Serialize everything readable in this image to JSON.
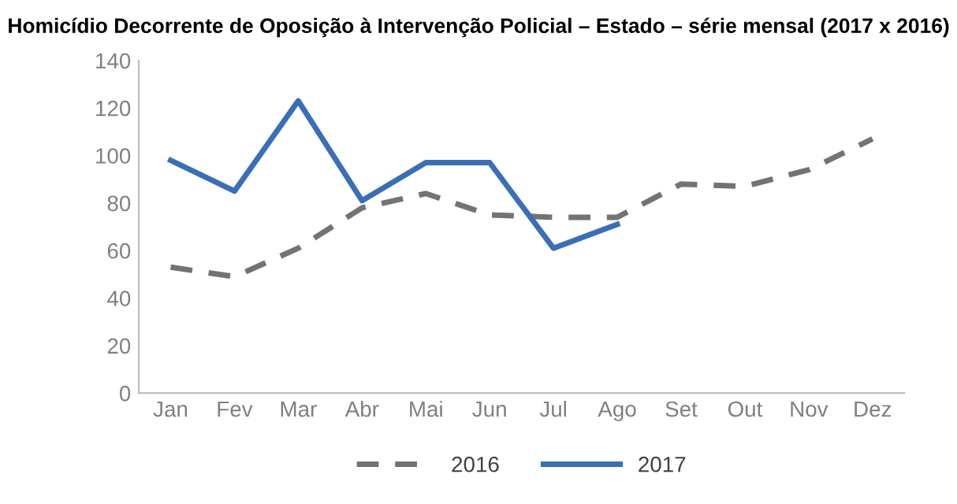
{
  "chart_data": {
    "type": "line",
    "title": "Homicídio Decorrente de Oposição à Intervenção Policial – Estado – série mensal (2017 x 2016)",
    "categories": [
      "Jan",
      "Fev",
      "Mar",
      "Abr",
      "Mai",
      "Jun",
      "Jul",
      "Ago",
      "Set",
      "Out",
      "Nov",
      "Dez"
    ],
    "series": [
      {
        "name": "2016",
        "color": "#737373",
        "line_style": "dashed",
        "values": [
          53,
          49,
          61,
          78,
          84,
          75,
          74,
          74,
          88,
          87,
          94,
          107
        ]
      },
      {
        "name": "2017",
        "color": "#3a6fb5",
        "line_style": "solid",
        "values": [
          98,
          85,
          123,
          81,
          97,
          97,
          61,
          71,
          null,
          null,
          null,
          null
        ]
      }
    ],
    "ylim": [
      0,
      140
    ],
    "yticks": [
      0,
      20,
      40,
      60,
      80,
      100,
      120,
      140
    ],
    "grid": false,
    "legend": "bottom",
    "marker": "none"
  }
}
